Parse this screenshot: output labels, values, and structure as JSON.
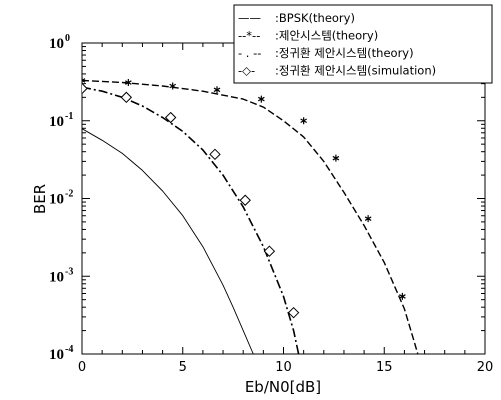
{
  "chart_data": {
    "type": "line",
    "xlabel": "Eb/N0[dB]",
    "ylabel": "BER",
    "xlim": [
      0,
      20
    ],
    "ylim": [
      0.0001,
      1
    ],
    "yscale": "log",
    "x_ticks": [
      "0",
      "5",
      "10",
      "15",
      "20"
    ],
    "y_ticks": [
      {
        "base": "10",
        "exp": "0"
      },
      {
        "base": "10",
        "exp": "-1"
      },
      {
        "base": "10",
        "exp": "-2"
      },
      {
        "base": "10",
        "exp": "-3"
      },
      {
        "base": "10",
        "exp": "-4"
      }
    ],
    "legend_position": "top-right",
    "series": [
      {
        "name": ":BPSK(theory)",
        "legend_sample": "——",
        "style": "solid",
        "width": 0.9,
        "marker": "none",
        "x": [
          0,
          1,
          2,
          3,
          4,
          5,
          6,
          7,
          7.5,
          8,
          8.5,
          9
        ],
        "y": [
          0.079,
          0.056,
          0.038,
          0.023,
          0.0125,
          0.006,
          0.0024,
          0.00077,
          0.0004,
          0.0002,
          0.0001,
          5e-05
        ]
      },
      {
        "name": ":제안시스템(theory)",
        "legend_sample": "--*--",
        "style": "dashed",
        "width": 1.4,
        "marker": "star",
        "x": [
          0,
          2,
          4,
          6,
          8,
          9,
          10,
          11,
          12,
          13,
          14,
          15,
          16,
          16.5,
          17
        ],
        "y": [
          0.33,
          0.31,
          0.28,
          0.24,
          0.19,
          0.15,
          0.1,
          0.062,
          0.03,
          0.012,
          0.0045,
          0.0015,
          0.00038,
          0.00014,
          5e-05
        ],
        "marker_x": [
          0,
          2.3,
          4.5,
          6.7,
          8.9,
          11,
          12.6,
          14.2,
          15.9
        ],
        "marker_y": [
          0.33,
          0.31,
          0.28,
          0.25,
          0.19,
          0.1,
          0.033,
          0.0055,
          0.00055
        ]
      },
      {
        "name": ":정귀환 제안시스템(theory)",
        "legend_sample": "- . --",
        "style": "dashdot",
        "width": 1.6,
        "marker": "none",
        "x": [
          0,
          1,
          2,
          3,
          4,
          5,
          6,
          7,
          8,
          9,
          10,
          10.5,
          11
        ],
        "y": [
          0.27,
          0.24,
          0.2,
          0.155,
          0.11,
          0.073,
          0.042,
          0.02,
          0.0078,
          0.0024,
          0.00055,
          0.0002,
          5e-05
        ]
      },
      {
        "name": ":정귀환 제안시스템(simulation)",
        "legend_sample": "-◇-",
        "style": "none",
        "width": 1,
        "marker": "diamond",
        "x": [
          0,
          2.2,
          4.4,
          6.6,
          8.1,
          9.3,
          10.5
        ],
        "y": [
          0.26,
          0.2,
          0.11,
          0.037,
          0.0095,
          0.0021,
          0.00034
        ]
      }
    ]
  }
}
